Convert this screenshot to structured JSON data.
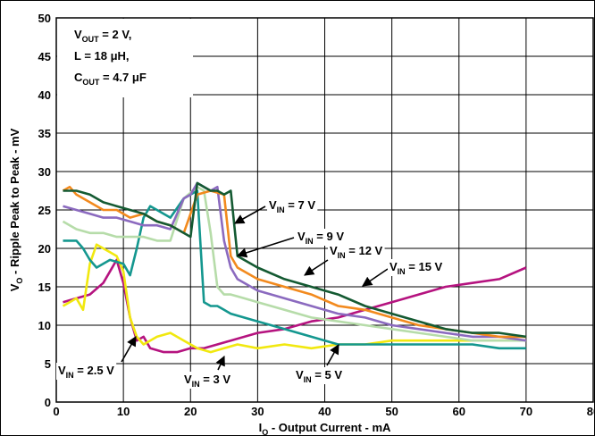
{
  "chart_data": {
    "type": "line",
    "title": "",
    "xlabel": "I_O - Output Current - mA",
    "xlabel_parts": {
      "main": "I",
      "sub": "O",
      "rest": " - Output Current - mA"
    },
    "ylabel": "V_O - Ripple Peak to Peak - mV",
    "ylabel_parts": {
      "main": "V",
      "sub": "O",
      "rest": " - Ripple Peak to Peak - mV"
    },
    "xlim": [
      0,
      80
    ],
    "ylim": [
      0,
      50
    ],
    "xticks": [
      0,
      10,
      20,
      30,
      40,
      50,
      60,
      70,
      80
    ],
    "yticks": [
      0,
      5,
      10,
      15,
      20,
      25,
      30,
      35,
      40,
      45,
      50
    ],
    "grid": true,
    "conditions": [
      {
        "main": "V",
        "sub": "OUT",
        "rest": " = 2 V,"
      },
      {
        "main": "L = 18 μH,",
        "sub": "",
        "rest": ""
      },
      {
        "main": "C",
        "sub": "OUT",
        "rest": " = 4.7 μF"
      }
    ],
    "series": [
      {
        "name": "V_IN = 2.5 V",
        "color": "#b5137f",
        "x": [
          1,
          3,
          5,
          7,
          8,
          9,
          10,
          11,
          12,
          13,
          14,
          16,
          18,
          20,
          22,
          24,
          26,
          30,
          34,
          38,
          42,
          46,
          50,
          54,
          58,
          62,
          66,
          70
        ],
        "y": [
          13,
          13.5,
          14,
          15.5,
          17,
          18.5,
          15.5,
          11,
          8,
          8.5,
          7,
          6.5,
          6.5,
          7,
          7,
          7.5,
          8,
          9,
          9.5,
          10.5,
          11,
          12,
          13,
          14,
          15,
          15.5,
          16,
          17.5
        ]
      },
      {
        "name": "V_IN = 3 V",
        "color": "#f1e80f",
        "x": [
          1,
          2,
          3,
          4,
          5,
          6,
          7,
          8,
          9,
          10,
          11,
          12,
          13,
          15,
          17,
          19,
          21,
          23,
          25,
          27,
          30,
          34,
          38,
          42,
          46,
          50,
          54,
          58,
          62,
          66,
          70
        ],
        "y": [
          12.5,
          13,
          13.5,
          12,
          18,
          20.5,
          20,
          19.5,
          19,
          17,
          11,
          8.5,
          7.5,
          8.5,
          9,
          8,
          7,
          6.5,
          7,
          7.5,
          7,
          7.5,
          7,
          7.5,
          7.5,
          8,
          8,
          8,
          8,
          8,
          8
        ]
      },
      {
        "name": "V_IN = 5 V",
        "color": "#14978f",
        "x": [
          1,
          3,
          4,
          5,
          6,
          8,
          10,
          11,
          12,
          13,
          14,
          15,
          17,
          19,
          20,
          21,
          22,
          23,
          24,
          25,
          26,
          30,
          34,
          38,
          42,
          46,
          50,
          54,
          58,
          62,
          66,
          70
        ],
        "y": [
          21,
          21,
          20,
          18.5,
          17.5,
          18.5,
          18,
          16.5,
          20,
          24,
          25.5,
          25,
          24,
          26.5,
          27,
          27.5,
          13,
          12.5,
          12.5,
          12,
          11.5,
          10.5,
          9.5,
          8.5,
          7.5,
          7.5,
          7.5,
          7.5,
          7.5,
          7.5,
          7,
          7
        ]
      },
      {
        "name": "V_IN = 7 V",
        "color": "#b6dca9",
        "x": [
          1,
          3,
          5,
          7,
          9,
          11,
          13,
          15,
          17,
          19,
          21,
          22,
          23,
          24,
          25,
          26,
          28,
          30,
          34,
          38,
          42,
          46,
          50,
          54,
          58,
          62,
          66,
          70
        ],
        "y": [
          23.5,
          22.5,
          22,
          22,
          21.5,
          21.5,
          21.5,
          21,
          21,
          26.5,
          28,
          27.5,
          22,
          15,
          14,
          14,
          13.5,
          13,
          12,
          11,
          10.5,
          10,
          9.5,
          9,
          8.5,
          8,
          8,
          8
        ]
      },
      {
        "name": "V_IN = 9 V",
        "color": "#8b6abf",
        "x": [
          1,
          3,
          5,
          7,
          9,
          11,
          13,
          15,
          17,
          19,
          20,
          21,
          23,
          24,
          25,
          26,
          27,
          30,
          34,
          38,
          42,
          46,
          50,
          54,
          58,
          62,
          66,
          70
        ],
        "y": [
          25.5,
          25,
          24.5,
          24,
          24,
          23.5,
          23,
          23,
          22.5,
          26.5,
          27,
          28.5,
          27.5,
          28,
          21,
          17.5,
          16,
          14.5,
          13.5,
          12.5,
          11.5,
          11,
          10,
          9.5,
          9,
          8.5,
          8.5,
          8
        ]
      },
      {
        "name": "V_IN = 12 V",
        "color": "#f28a1e",
        "x": [
          1,
          2,
          3,
          5,
          7,
          9,
          11,
          13,
          15,
          17,
          19,
          21,
          23,
          25,
          26,
          27,
          30,
          34,
          38,
          42,
          46,
          50,
          54,
          58,
          62,
          66,
          70
        ],
        "y": [
          27.5,
          28,
          27,
          26,
          25,
          25,
          24,
          24.5,
          23.5,
          23,
          22,
          27,
          27.5,
          27,
          19,
          17.5,
          16,
          15,
          14,
          12.5,
          12,
          11,
          10,
          9.5,
          9,
          8.5,
          8.5
        ]
      },
      {
        "name": "V_IN = 15 V",
        "color": "#145a32",
        "x": [
          1,
          3,
          5,
          7,
          9,
          11,
          13,
          15,
          17,
          19,
          20,
          21,
          22,
          23,
          24,
          25,
          26,
          27,
          30,
          34,
          38,
          42,
          46,
          50,
          54,
          58,
          62,
          66,
          70
        ],
        "y": [
          27.5,
          27.5,
          27,
          26,
          25.5,
          25,
          24.5,
          23.5,
          23,
          22,
          21.5,
          28.5,
          28,
          27.5,
          27.5,
          27,
          27.5,
          19,
          17.5,
          16,
          15,
          14,
          12.5,
          11.5,
          10.5,
          9.5,
          9,
          9,
          8.5
        ]
      }
    ],
    "annotations": [
      {
        "id": "ann-7v",
        "main": "V",
        "sub": "IN",
        "rest": " = 7 V"
      },
      {
        "id": "ann-9v",
        "main": "V",
        "sub": "IN",
        "rest": " = 9 V"
      },
      {
        "id": "ann-12v",
        "main": "V",
        "sub": "IN",
        "rest": " = 12 V"
      },
      {
        "id": "ann-15v",
        "main": "V",
        "sub": "IN",
        "rest": " = 15 V"
      },
      {
        "id": "ann-2p5v",
        "main": "V",
        "sub": "IN",
        "rest": " = 2.5 V"
      },
      {
        "id": "ann-3v",
        "main": "V",
        "sub": "IN",
        "rest": " = 3 V"
      },
      {
        "id": "ann-5v",
        "main": "V",
        "sub": "IN",
        "rest": " = 5 V"
      }
    ]
  }
}
